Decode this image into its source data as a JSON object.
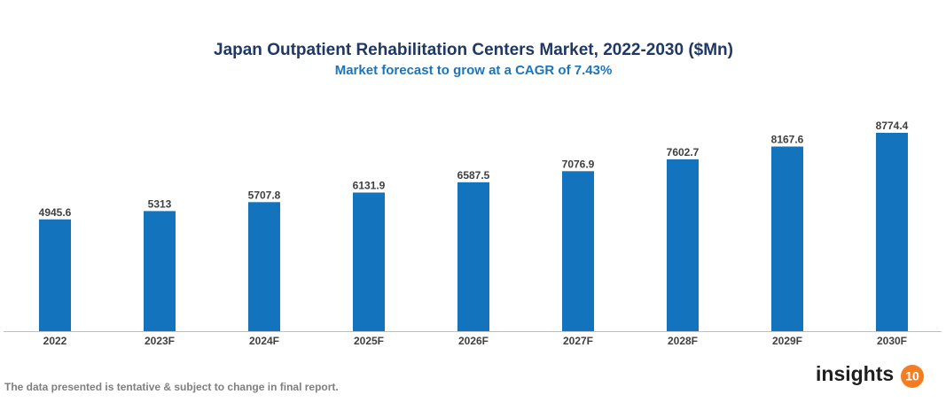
{
  "chart_data": {
    "type": "bar",
    "title": "Japan Outpatient Rehabilitation Centers Market, 2022-2030 ($Mn)",
    "subtitle": "Market forecast to grow at a CAGR of 7.43%",
    "categories": [
      "2022",
      "2023F",
      "2024F",
      "2025F",
      "2026F",
      "2027F",
      "2028F",
      "2029F",
      "2030F"
    ],
    "values": [
      4945.6,
      5313,
      5707.8,
      6131.9,
      6587.5,
      7076.9,
      7602.7,
      8167.6,
      8774.4
    ],
    "color": "#1473bd"
  },
  "footnote": "The data presented is tentative & subject to change in final report.",
  "logo": {
    "text": "insights",
    "badge": "10"
  }
}
